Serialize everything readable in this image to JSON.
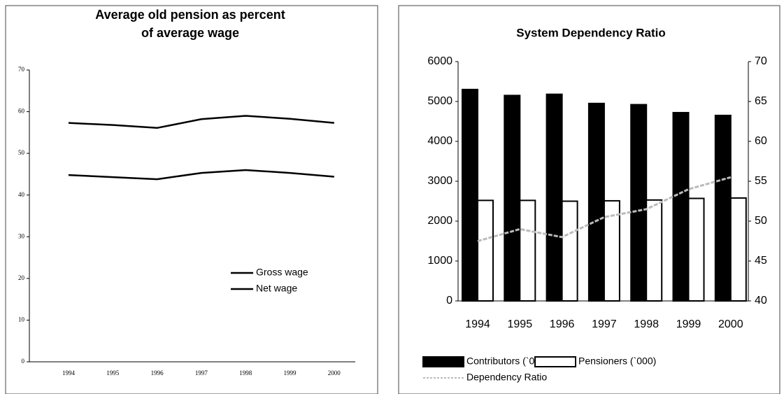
{
  "chart_data": [
    {
      "type": "line",
      "title": [
        "Average old pension as percent",
        "of average wage"
      ],
      "categories": [
        "1994",
        "1995",
        "1996",
        "1997",
        "1998",
        "1999",
        "2000"
      ],
      "series": [
        {
          "name": "Gross wage",
          "color": "#000000",
          "values": [
            57.3,
            56.8,
            56.1,
            58.2,
            59,
            58.3,
            57.3
          ]
        },
        {
          "name": "Net wage",
          "color": "#000000",
          "values": [
            44.8,
            44.3,
            43.8,
            45.3,
            46,
            45.3,
            44.4
          ]
        }
      ],
      "ylim": [
        0,
        70
      ],
      "yticks": [
        0,
        10,
        20,
        30,
        40,
        50,
        60,
        70
      ]
    },
    {
      "type": "bar",
      "title": "System Dependency Ratio",
      "categories": [
        "1994",
        "1995",
        "1996",
        "1997",
        "1998",
        "1999",
        "2000"
      ],
      "series": [
        {
          "name": "Contributors (`000)",
          "color": "#000000",
          "values": [
            5300,
            5150,
            5180,
            4950,
            4920,
            4720,
            4650
          ]
        },
        {
          "name": "Pensioners (`000)",
          "color": "#ffffff",
          "values": [
            2520,
            2520,
            2500,
            2510,
            2530,
            2570,
            2580
          ]
        },
        {
          "name": "Dependency Ratio",
          "color": "#bbbbbb",
          "type": "line",
          "axis": "y2",
          "values": [
            47.5,
            49,
            48,
            50.5,
            51.5,
            54,
            55.5
          ]
        }
      ],
      "ylim": [
        0,
        6000
      ],
      "yticks": [
        0,
        1000,
        2000,
        3000,
        4000,
        5000,
        6000
      ],
      "y2lim": [
        40,
        70
      ],
      "y2ticks": [
        40,
        45,
        50,
        55,
        60,
        65,
        70
      ]
    }
  ]
}
